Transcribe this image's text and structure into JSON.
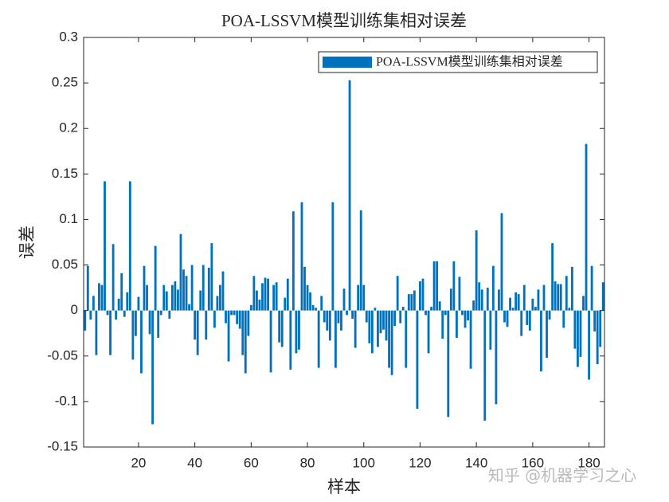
{
  "chart_data": {
    "type": "bar",
    "title": "POA-LSSVM模型训练集相对误差",
    "x_label": "样本",
    "y_label": "误差",
    "watermark": "知乎 @机器学习之心",
    "x": [
      1,
      2,
      3,
      4,
      5,
      6,
      7,
      8,
      9,
      10,
      11,
      12,
      13,
      14,
      15,
      16,
      17,
      18,
      19,
      20,
      21,
      22,
      23,
      24,
      25,
      26,
      27,
      28,
      29,
      30,
      31,
      32,
      33,
      34,
      35,
      36,
      37,
      38,
      39,
      40,
      41,
      42,
      43,
      44,
      45,
      46,
      47,
      48,
      49,
      50,
      51,
      52,
      53,
      54,
      55,
      56,
      57,
      58,
      59,
      60,
      61,
      62,
      63,
      64,
      65,
      66,
      67,
      68,
      69,
      70,
      71,
      72,
      73,
      74,
      75,
      76,
      77,
      78,
      79,
      80,
      81,
      82,
      83,
      84,
      85,
      86,
      87,
      88,
      89,
      90,
      91,
      92,
      93,
      94,
      95,
      96,
      97,
      98,
      99,
      100,
      101,
      102,
      103,
      104,
      105,
      106,
      107,
      108,
      109,
      110,
      111,
      112,
      113,
      114,
      115,
      116,
      117,
      118,
      119,
      120,
      121,
      122,
      123,
      124,
      125,
      126,
      127,
      128,
      129,
      130,
      131,
      132,
      133,
      134,
      135,
      136,
      137,
      138,
      139,
      140,
      141,
      142,
      143,
      144,
      145,
      146,
      147,
      148,
      149,
      150,
      151,
      152,
      153,
      154,
      155,
      156,
      157,
      158,
      159,
      160,
      161,
      162,
      163,
      164,
      165,
      166,
      167,
      168,
      169,
      170,
      171,
      172,
      173,
      174,
      175,
      176,
      177,
      178,
      179,
      180,
      181,
      182,
      183,
      184,
      185
    ],
    "series": [
      {
        "name": "POA-LSSVM模型训练集相对误差",
        "color": "#0072BD",
        "values": [
          -0.022,
          0.049,
          -0.01,
          0.016,
          -0.049,
          0.03,
          0.028,
          0.142,
          -0.005,
          -0.049,
          0.073,
          -0.01,
          0.013,
          0.041,
          -0.007,
          0.02,
          0.142,
          -0.054,
          -0.028,
          0.015,
          -0.069,
          0.049,
          0.028,
          -0.026,
          -0.125,
          0.071,
          -0.03,
          -0.005,
          0.028,
          0.021,
          -0.009,
          0.028,
          0.032,
          0.023,
          0.084,
          0.045,
          0.038,
          0.007,
          0.05,
          -0.032,
          -0.049,
          0.022,
          0.05,
          -0.032,
          0.047,
          0.074,
          -0.019,
          0.016,
          0.028,
          0.043,
          -0.014,
          -0.056,
          -0.005,
          -0.005,
          -0.015,
          -0.02,
          -0.049,
          -0.069,
          -0.028,
          0.006,
          0.038,
          0.022,
          0.012,
          0.03,
          0.036,
          0.035,
          -0.068,
          0.028,
          0.031,
          -0.035,
          -0.04,
          0.014,
          0.035,
          -0.065,
          0.109,
          -0.047,
          -0.043,
          0.119,
          0.048,
          0.028,
          0.02,
          0.006,
          0.003,
          -0.063,
          0.016,
          -0.013,
          -0.022,
          -0.033,
          0.119,
          -0.063,
          -0.014,
          -0.022,
          0.024,
          -0.005,
          0.253,
          -0.009,
          -0.041,
          0.028,
          0.11,
          0.028,
          -0.013,
          -0.036,
          -0.047,
          0.003,
          -0.04,
          -0.025,
          -0.021,
          -0.033,
          -0.063,
          -0.071,
          -0.017,
          0.038,
          -0.014,
          0.004,
          -0.063,
          0.018,
          0.018,
          0.022,
          -0.108,
          0.032,
          0.035,
          -0.005,
          -0.047,
          0.004,
          0.054,
          0.054,
          0.01,
          -0.031,
          -0.005,
          -0.117,
          0.024,
          0.054,
          -0.03,
          0.037,
          -0.005,
          -0.019,
          -0.011,
          -0.064,
          0.011,
          0.088,
          0.031,
          0.023,
          -0.121,
          0.025,
          -0.043,
          0.049,
          -0.103,
          0.023,
          0.107,
          -0.013,
          -0.018,
          0.014,
          0.003,
          0.02,
          0.018,
          -0.028,
          0.028,
          -0.016,
          -0.022,
          0.013,
          0.004,
          0.023,
          -0.067,
          0.028,
          -0.052,
          -0.01,
          0.074,
          0.032,
          0.029,
          0.029,
          -0.019,
          0.038,
          0.003,
          0.048,
          -0.042,
          -0.062,
          -0.051,
          0.016,
          0.183,
          -0.076,
          0.049,
          -0.023,
          -0.059,
          -0.04,
          0.031
        ]
      }
    ],
    "xlim": [
      0.5,
      185.5
    ],
    "xticks": [
      20,
      40,
      60,
      80,
      100,
      120,
      140,
      160,
      180
    ],
    "ylim": [
      -0.15,
      0.3
    ],
    "yticks": [
      -0.15,
      -0.1,
      -0.05,
      0,
      0.05,
      0.1,
      0.15,
      0.2,
      0.25,
      0.3
    ],
    "legend": "upper right"
  }
}
